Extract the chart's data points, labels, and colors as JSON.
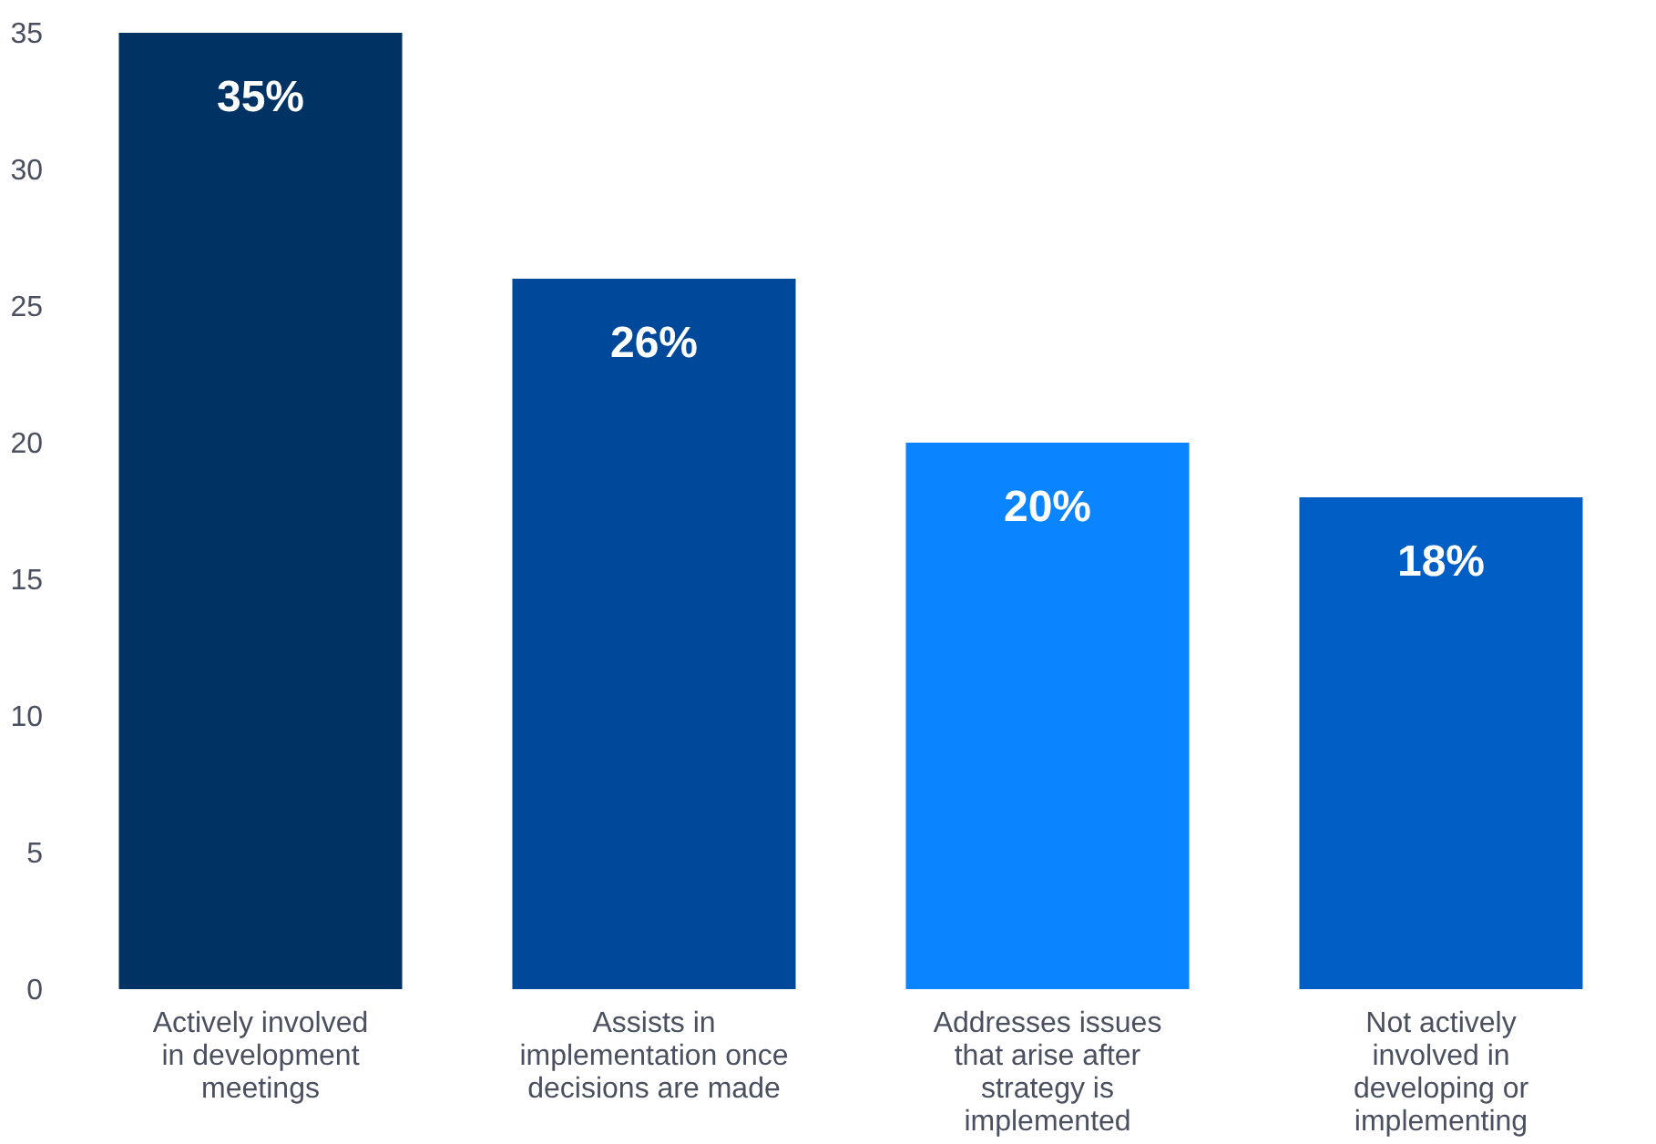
{
  "chart_data": {
    "type": "bar",
    "categories": [
      "Actively involved in development meetings",
      "Assists in implementation once decisions are made",
      "Addresses issues that arise after strategy is implemented",
      "Not actively involved in developing or implementing"
    ],
    "values": [
      35,
      26,
      20,
      18
    ],
    "colors": [
      "#003263",
      "#00489a",
      "#0a84ff",
      "#005ec4"
    ],
    "value_labels": [
      "35%",
      "26%",
      "20%",
      "18%"
    ],
    "ylim": [
      0,
      35
    ],
    "yticks": [
      0,
      5,
      10,
      15,
      20,
      25,
      30,
      35
    ],
    "grid": false
  }
}
